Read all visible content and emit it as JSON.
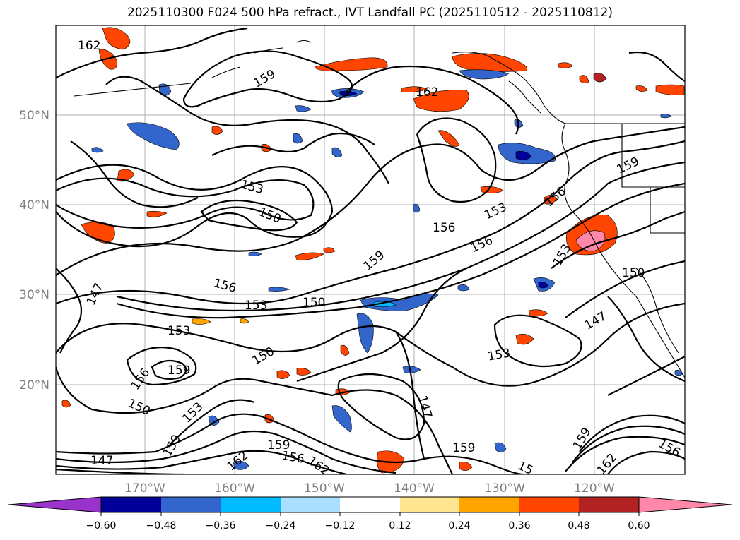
{
  "title": "2025110300 F024 500 hPa refract., IVT Landfall PC (2025110512 - 2025110812)",
  "lat_labels": [
    "50°N",
    "40°N",
    "30°N",
    "20°N"
  ],
  "lon_labels": [
    "170°W",
    "160°W",
    "150°W",
    "140°W",
    "130°W",
    "120°W"
  ],
  "contour_labels": [
    "162",
    "159",
    "162",
    "153",
    "150",
    "156",
    "153",
    "156",
    "159",
    "156",
    "153",
    "147",
    "156",
    "153",
    "150",
    "153",
    "150",
    "159",
    "156",
    "150",
    "153",
    "150",
    "147",
    "153",
    "147",
    "159",
    "162",
    "159",
    "156",
    "162",
    "147",
    "159",
    "15",
    "159",
    "162",
    "156"
  ],
  "colorbar": {
    "ticks": [
      "−0.60",
      "−0.48",
      "−0.36",
      "−0.24",
      "−0.12",
      "0.12",
      "0.24",
      "0.36",
      "0.48",
      "0.60"
    ],
    "colors": [
      "#9933cc",
      "#000099",
      "#3366cc",
      "#00bbff",
      "#aadfff",
      "#ffffff",
      "#ffe58f",
      "#ffa500",
      "#ff4500",
      "#b22222",
      "#ff88aa"
    ]
  }
}
